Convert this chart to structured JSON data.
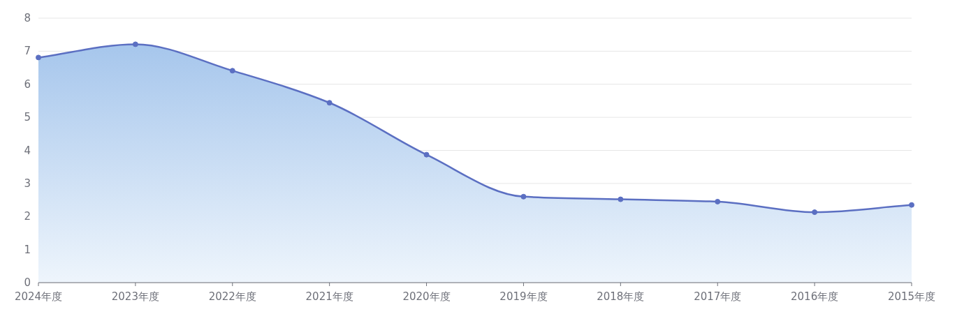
{
  "chart_data": {
    "type": "area",
    "categories": [
      "2024年度",
      "2023年度",
      "2022年度",
      "2021年度",
      "2020年度",
      "2019年度",
      "2018年度",
      "2017年度",
      "2016年度",
      "2015年度"
    ],
    "values": [
      6.81,
      7.21,
      6.41,
      5.44,
      3.87,
      2.6,
      2.52,
      2.45,
      2.13,
      2.35
    ],
    "color": "#5b6fc2",
    "ylim": [
      0,
      8
    ],
    "yticks": [
      0,
      1,
      2,
      3,
      4,
      5,
      6,
      7,
      8
    ],
    "grid": "y",
    "marker": "circle"
  }
}
